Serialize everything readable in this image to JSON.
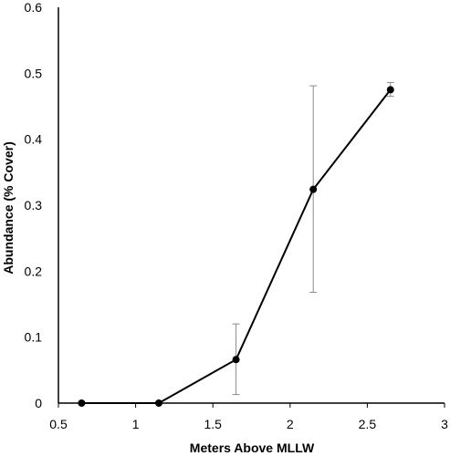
{
  "chart_data": {
    "type": "line",
    "title": "",
    "xlabel": "Meters Above MLLW",
    "ylabel": "Abundance (% Cover)",
    "xlim": [
      0.5,
      3
    ],
    "ylim": [
      0,
      0.6
    ],
    "x_ticks": [
      0.5,
      1,
      1.5,
      2,
      2.5,
      3
    ],
    "x_tick_labels": [
      "0.5",
      "1",
      "1.5",
      "2",
      "2.5",
      "3"
    ],
    "y_ticks": [
      0,
      0.1,
      0.2,
      0.3,
      0.4,
      0.5,
      0.6
    ],
    "y_tick_labels": [
      "0",
      "0.1",
      "0.2",
      "0.3",
      "0.4",
      "0.5",
      "0.6"
    ],
    "grid": false,
    "legend": "none",
    "series": [
      {
        "x": [
          0.65,
          1.15,
          1.65,
          2.15,
          2.65
        ],
        "y": [
          0.0,
          0.0,
          0.066,
          0.324,
          0.475
        ],
        "error_low": [
          0.0,
          0.0,
          0.013,
          0.168,
          0.465
        ],
        "error_high": [
          0.0,
          0.0,
          0.12,
          0.481,
          0.486
        ],
        "color": "#000000",
        "error_bar_color": "#8c8c8c"
      }
    ]
  }
}
